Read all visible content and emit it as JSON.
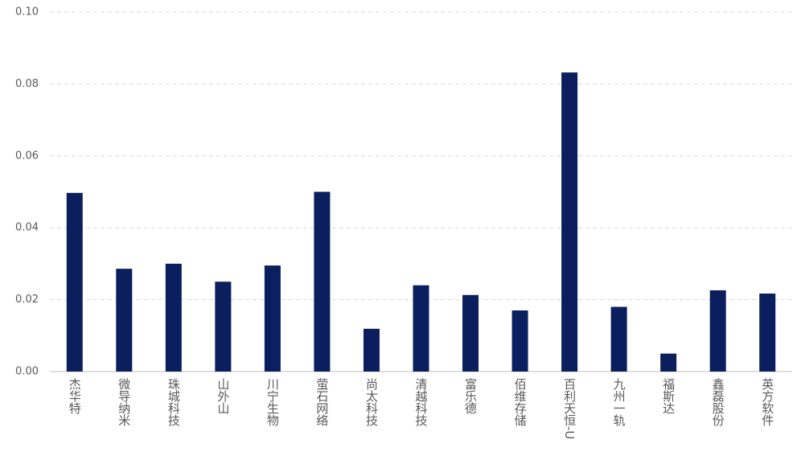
{
  "chart_data": {
    "type": "bar",
    "categories": [
      "杰华特",
      "微导纳米",
      "珠城科技",
      "山外山",
      "川宁生物",
      "萤石网络",
      "尚太科技",
      "清越科技",
      "富乐德",
      "佰维存储",
      "百利天恒-U",
      "九州一轨",
      "福斯达",
      "鑫磊股份",
      "英方软件"
    ],
    "values": [
      0.0497,
      0.0286,
      0.03,
      0.025,
      0.0295,
      0.05,
      0.0119,
      0.024,
      0.0213,
      0.017,
      0.0832,
      0.018,
      0.005,
      0.0226,
      0.0217
    ],
    "color": "#0b1f5e",
    "ylim": [
      0,
      0.1
    ],
    "yticks": [
      {
        "value": 0,
        "label": "0.00"
      },
      0.02,
      0.04,
      0.06,
      0.08,
      {
        "value": 0.1,
        "label": "0.10"
      }
    ],
    "grid": true
  }
}
